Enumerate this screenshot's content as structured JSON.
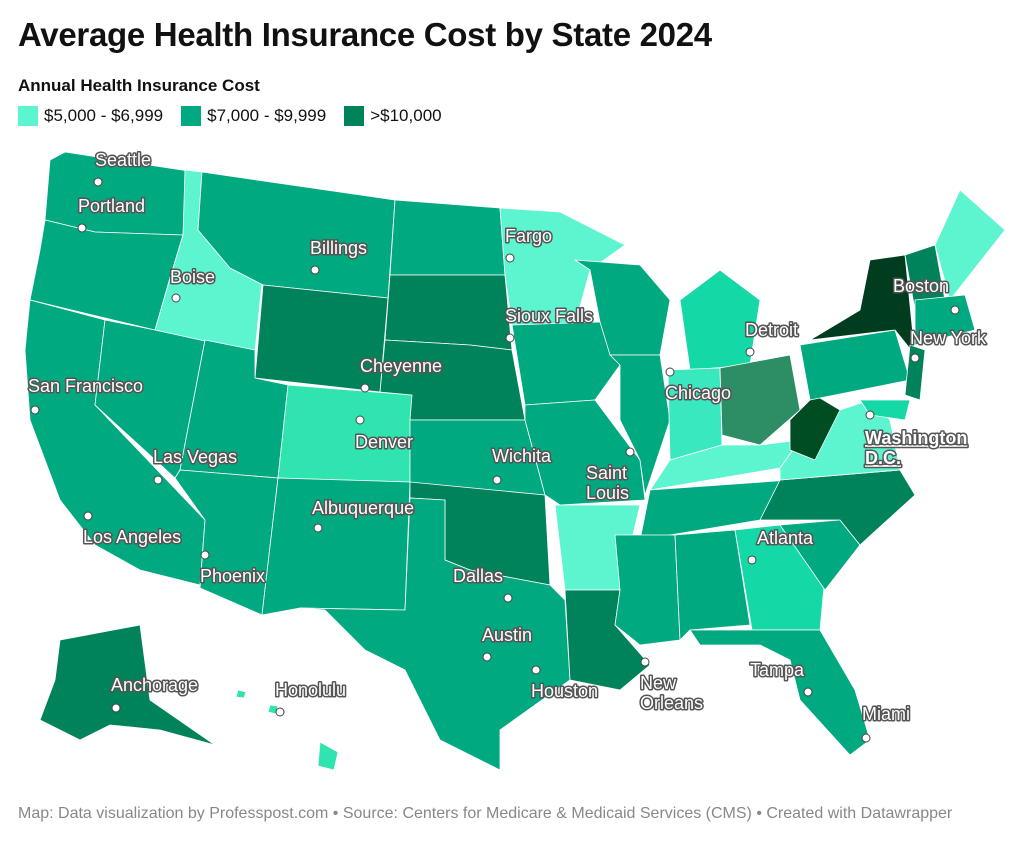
{
  "header": {
    "title": "Average Health Insurance Cost by State 2024",
    "legend_title": "Annual Health Insurance Cost"
  },
  "legend": [
    {
      "label": "$5,000 - $6,999",
      "color": "#5df5d0"
    },
    {
      "label": "$7,000 - $9,999",
      "color": "#00a97f"
    },
    {
      "label": ">$10,000",
      "color": "#00835a"
    }
  ],
  "map": {
    "cities": [
      {
        "lines": [
          "Seattle"
        ]
      },
      {
        "lines": [
          "Portland"
        ]
      },
      {
        "lines": [
          "Boise"
        ]
      },
      {
        "lines": [
          "Billings"
        ]
      },
      {
        "lines": [
          "Fargo"
        ]
      },
      {
        "lines": [
          "Sioux Falls"
        ]
      },
      {
        "lines": [
          "Cheyenne"
        ]
      },
      {
        "lines": [
          "San Francisco"
        ]
      },
      {
        "lines": [
          "Denver"
        ]
      },
      {
        "lines": [
          "Las Vegas"
        ]
      },
      {
        "lines": [
          "Wichita"
        ]
      },
      {
        "lines": [
          "Saint",
          "Louis"
        ]
      },
      {
        "lines": [
          "Chicago"
        ]
      },
      {
        "lines": [
          "Detroit"
        ]
      },
      {
        "lines": [
          "Boston"
        ]
      },
      {
        "lines": [
          "New York"
        ]
      },
      {
        "lines": [
          "Washington",
          "D.C."
        ]
      },
      {
        "lines": [
          "Los Angeles"
        ]
      },
      {
        "lines": [
          "Albuquerque"
        ]
      },
      {
        "lines": [
          "Phoenix"
        ]
      },
      {
        "lines": [
          "Atlanta"
        ]
      },
      {
        "lines": [
          "Dallas"
        ]
      },
      {
        "lines": [
          "Austin"
        ]
      },
      {
        "lines": [
          "Houston"
        ]
      },
      {
        "lines": [
          "New",
          "Orleans"
        ]
      },
      {
        "lines": [
          "Tampa"
        ]
      },
      {
        "lines": [
          "Miami"
        ]
      },
      {
        "lines": [
          "Anchorage"
        ]
      },
      {
        "lines": [
          "Honolulu"
        ]
      }
    ]
  },
  "footer": "Map: Data visualization by Professpost.com  • Source: Centers for Medicare & Medicaid Services (CMS) • Created with Datawrapper"
}
